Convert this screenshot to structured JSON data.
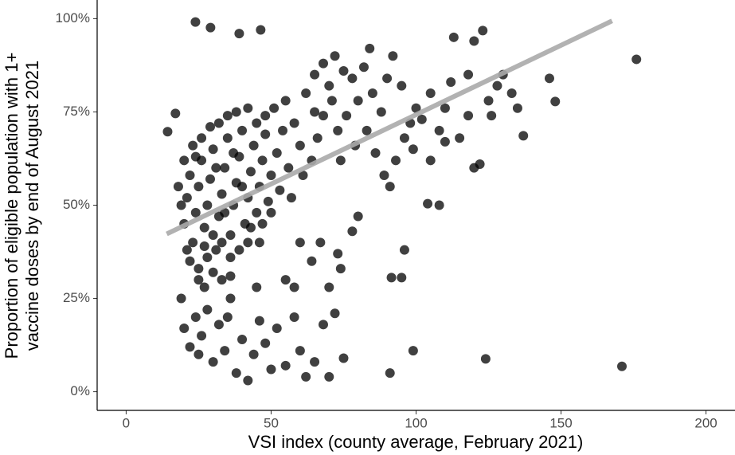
{
  "chart_data": {
    "type": "scatter",
    "xlabel": "VSI index (county average, February 2021)",
    "ylabel": [
      "Proportion of eligible population with 1+",
      "vaccine doses by end of August 2021"
    ],
    "xlim": [
      -10,
      210
    ],
    "ylim": [
      -5,
      105
    ],
    "xticks": [
      0,
      50,
      100,
      150,
      200
    ],
    "yticks": [
      {
        "value": 0,
        "label": "0%"
      },
      {
        "value": 25,
        "label": "25%"
      },
      {
        "value": 50,
        "label": "50%"
      },
      {
        "value": 75,
        "label": "75%"
      },
      {
        "value": 100,
        "label": "100%"
      }
    ],
    "grid": false,
    "series": [
      {
        "color": "#000000",
        "x": [
          20,
          21,
          22,
          23,
          24,
          25,
          26,
          27,
          28,
          29,
          30,
          31,
          32,
          33,
          34,
          35,
          36,
          37,
          38,
          39,
          40,
          41,
          42,
          43,
          44,
          45,
          46,
          47,
          48,
          49,
          50,
          52,
          54,
          56,
          58,
          60,
          22,
          25,
          28,
          30,
          33,
          36,
          26,
          29,
          32,
          35,
          38,
          42,
          45,
          48,
          51,
          55,
          24,
          27,
          31,
          34,
          37,
          40,
          43,
          46,
          19,
          18,
          20,
          21,
          23,
          25,
          27,
          30,
          33,
          36,
          39,
          42,
          47,
          50,
          53,
          57,
          61,
          64,
          66,
          68,
          62,
          65,
          68,
          70,
          72,
          75,
          78,
          80,
          82,
          85,
          88,
          90,
          92,
          95,
          98,
          100,
          73,
          76,
          79,
          83,
          86,
          89,
          93,
          96,
          65,
          71,
          74,
          84,
          91,
          99,
          102,
          105,
          108,
          110,
          112,
          115,
          118,
          120,
          125,
          128,
          130,
          133,
          135,
          118,
          105,
          110,
          122,
          126,
          19,
          20,
          22,
          24,
          26,
          28,
          30,
          32,
          34,
          36,
          38,
          40,
          42,
          44,
          46,
          48,
          50,
          52,
          55,
          58,
          60,
          62,
          65,
          68,
          70,
          72,
          75,
          55,
          58,
          64,
          70,
          74,
          67,
          73,
          78,
          80,
          60,
          45,
          35,
          25,
          23.9,
          29.1,
          39,
          46.4,
          176,
          171,
          124,
          99,
          91,
          146,
          148,
          137,
          104,
          108,
          96,
          91.5,
          95,
          113,
          123,
          120,
          14.3,
          17
        ],
        "values": [
          45,
          52,
          58,
          40,
          48,
          55,
          62,
          44,
          50,
          57,
          65,
          38,
          47,
          53,
          60,
          68,
          42,
          50,
          56,
          63,
          70,
          45,
          52,
          59,
          66,
          48,
          55,
          62,
          69,
          51,
          58,
          64,
          70,
          60,
          72,
          66,
          35,
          33,
          36,
          42,
          40,
          36,
          68,
          71,
          72,
          74,
          75,
          76,
          72,
          74,
          76,
          78,
          63,
          39,
          60,
          48,
          64,
          55,
          44,
          40,
          50,
          55,
          62,
          38,
          66,
          30,
          28,
          32,
          30,
          31,
          38,
          40,
          45,
          48,
          54,
          52,
          58,
          62,
          68,
          74,
          80,
          85,
          88,
          82,
          90,
          86,
          84,
          78,
          87,
          80,
          75,
          84,
          90,
          82,
          72,
          76,
          70,
          74,
          66,
          70,
          64,
          58,
          62,
          68,
          75,
          78,
          62,
          92,
          55,
          65,
          73,
          80,
          70,
          76,
          83,
          68,
          74,
          60,
          78,
          82,
          85,
          80,
          76,
          85,
          62,
          67,
          61,
          74,
          25,
          17,
          12,
          20,
          15,
          22,
          8,
          18,
          11,
          25,
          5,
          14,
          3,
          10,
          19,
          13,
          6,
          17,
          7,
          20,
          11,
          4,
          8,
          18,
          4,
          21,
          9,
          30,
          28,
          35,
          28,
          33,
          40,
          37,
          43,
          47,
          40,
          28,
          20,
          10,
          99.1,
          97.6,
          96,
          97,
          89.1,
          6.8,
          8.8,
          11,
          5,
          84,
          77.8,
          68.6,
          50.4,
          50,
          38,
          30.6,
          30.6,
          95,
          96.8,
          94,
          69.7,
          74.6
        ]
      }
    ],
    "fit_line": {
      "color": "#aaaaaa",
      "x": [
        14,
        167.6
      ],
      "values": [
        42.3,
        99.4
      ]
    }
  }
}
